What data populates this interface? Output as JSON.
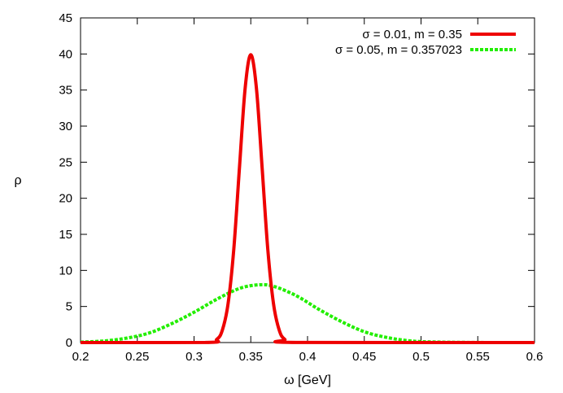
{
  "chart_data": {
    "type": "line",
    "xlabel": "ω [GeV]",
    "ylabel": "ρ",
    "xlim": [
      0.2,
      0.6
    ],
    "ylim": [
      0,
      45
    ],
    "xticks": [
      0.2,
      0.25,
      0.3,
      0.35,
      0.4,
      0.45,
      0.5,
      0.55,
      0.6
    ],
    "xtick_labels": [
      "0.2",
      "0.25",
      "0.3",
      "0.35",
      "0.4",
      "0.45",
      "0.5",
      "0.55",
      "0.6"
    ],
    "yticks": [
      0,
      5,
      10,
      15,
      20,
      25,
      30,
      35,
      40,
      45
    ],
    "ytick_labels": [
      "0",
      "5",
      "10",
      "15",
      "20",
      "25",
      "30",
      "35",
      "40",
      "45"
    ],
    "grid": false,
    "legend_position": "top-right",
    "series": [
      {
        "name": "σ = 0.01, m = 0.35",
        "color": "#ee0000",
        "style": "solid",
        "x": [
          0.2,
          0.31,
          0.32,
          0.325,
          0.33,
          0.335,
          0.34,
          0.345,
          0.35,
          0.355,
          0.36,
          0.365,
          0.37,
          0.375,
          0.38,
          0.39,
          0.6
        ],
        "y": [
          0,
          0.01,
          0.44,
          1.75,
          5.4,
          12.9,
          24.2,
          35.2,
          39.9,
          35.2,
          24.2,
          12.9,
          5.4,
          1.75,
          0.44,
          0.01,
          0
        ]
      },
      {
        "name": "σ = 0.05, m = 0.357023",
        "color": "#22ee00",
        "style": "dashed",
        "x": [
          0.2,
          0.22,
          0.24,
          0.26,
          0.28,
          0.3,
          0.32,
          0.34,
          0.357,
          0.37,
          0.39,
          0.41,
          0.43,
          0.45,
          0.47,
          0.49,
          0.51,
          0.55,
          0.6
        ],
        "y": [
          0.06,
          0.21,
          0.6,
          1.3,
          2.6,
          4.2,
          6.0,
          7.5,
          8.0,
          7.8,
          6.5,
          4.6,
          2.9,
          1.5,
          0.7,
          0.24,
          0.08,
          0.01,
          0
        ]
      }
    ]
  }
}
